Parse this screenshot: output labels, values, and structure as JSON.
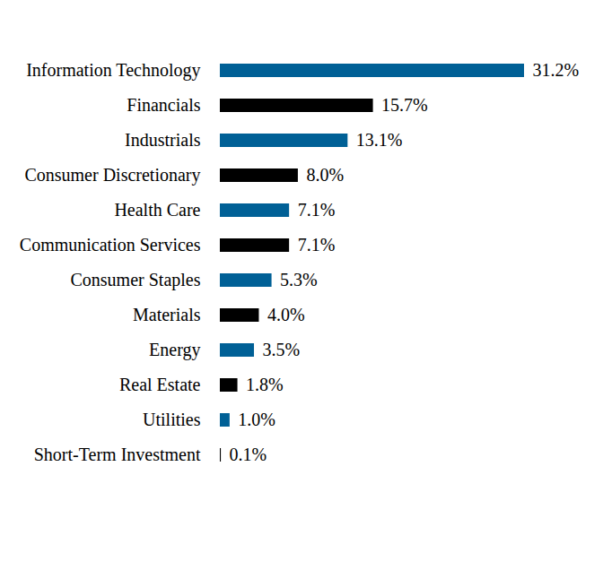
{
  "chart_data": {
    "type": "bar",
    "orientation": "horizontal",
    "categories": [
      "Information Technology",
      "Financials",
      "Industrials",
      "Consumer Discretionary",
      "Health Care",
      "Communication Services",
      "Consumer Staples",
      "Materials",
      "Energy",
      "Real Estate",
      "Utilities",
      "Short-Term Investment"
    ],
    "values": [
      31.2,
      15.7,
      13.1,
      8.0,
      7.1,
      7.1,
      5.3,
      4.0,
      3.5,
      1.8,
      1.0,
      0.1
    ],
    "value_labels": [
      "31.2%",
      "15.7%",
      "13.1%",
      "8.0%",
      "7.1%",
      "7.1%",
      "5.3%",
      "4.0%",
      "3.5%",
      "1.8%",
      "1.0%",
      "0.1%"
    ],
    "colors": [
      "#006096",
      "#000000",
      "#006096",
      "#000000",
      "#006096",
      "#000000",
      "#006096",
      "#000000",
      "#006096",
      "#000000",
      "#006096",
      "#000000"
    ],
    "data_labels": true,
    "tick_labels": "y",
    "grid": false
  }
}
